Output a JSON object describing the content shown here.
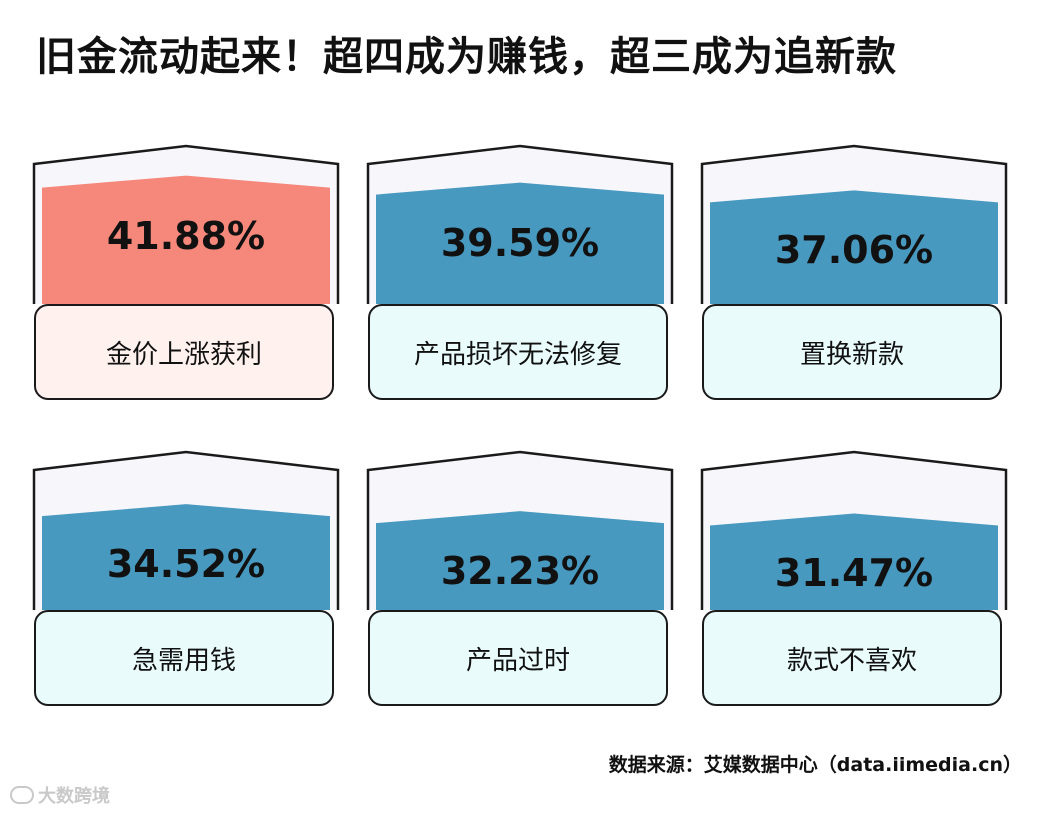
{
  "title": "旧金流动起来！超四成为赚钱，超三成为追新款",
  "source": "数据来源：艾媒数据中心（data.iimedia.cn）",
  "watermark": "大数跨境",
  "colors": {
    "highlight_fill": "#f5887a",
    "highlight_label_bg": "#fff1ee",
    "bar_fill": "#4899bf",
    "label_bg": "#e9fbfb",
    "frame_bg": "#f7f6fb"
  },
  "chart_data": {
    "type": "bar",
    "categories": [
      "金价上涨获利",
      "产品损坏无法修复",
      "置换新款",
      "急需用钱",
      "产品过时",
      "款式不喜欢"
    ],
    "values": [
      41.88,
      39.59,
      37.06,
      34.52,
      32.23,
      31.47
    ],
    "value_labels": [
      "41.88%",
      "39.59%",
      "37.06%",
      "34.52%",
      "32.23%",
      "31.47%"
    ],
    "highlighted": [
      "金价上涨获利"
    ]
  }
}
